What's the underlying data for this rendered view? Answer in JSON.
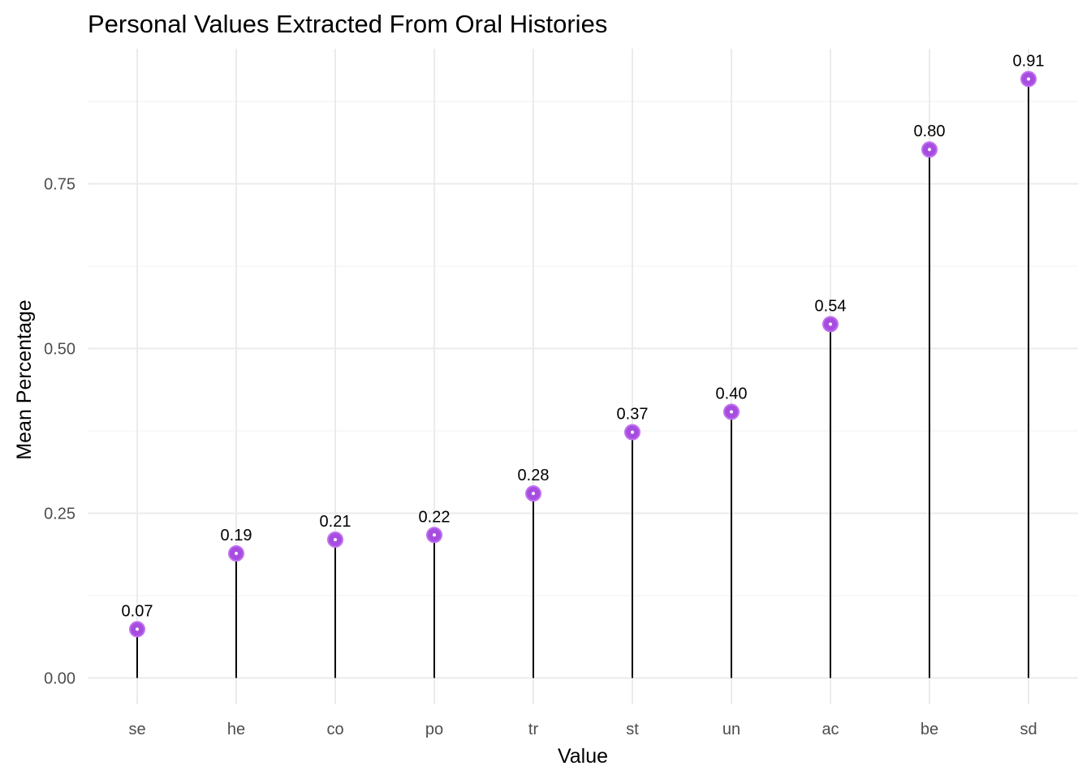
{
  "chart_data": {
    "type": "lollipop",
    "title": "Personal Values Extracted From Oral Histories",
    "xlabel": "Value",
    "ylabel": "Mean Percentage",
    "categories": [
      "se",
      "he",
      "co",
      "po",
      "tr",
      "st",
      "un",
      "ac",
      "be",
      "sd"
    ],
    "values": [
      0.074,
      0.189,
      0.21,
      0.217,
      0.28,
      0.373,
      0.404,
      0.537,
      0.802,
      0.909
    ],
    "value_labels": [
      "0.07",
      "0.19",
      "0.21",
      "0.22",
      "0.28",
      "0.37",
      "0.40",
      "0.54",
      "0.80",
      "0.91"
    ],
    "ylim": [
      -0.04,
      0.955
    ],
    "y_ticks": [
      0,
      0.25,
      0.5,
      0.75
    ],
    "y_tick_labels": [
      "0.00",
      "0.25",
      "0.50",
      "0.75"
    ],
    "y_minor_ticks": [
      0.125,
      0.375,
      0.625,
      0.875
    ],
    "grid": true,
    "legend": "none",
    "colors": {
      "point_fill": "#a64de0",
      "point_edge": "#c070f0",
      "stem": "#000000",
      "grid_major": "#ebebeb",
      "grid_minor": "#f2f2f2"
    }
  }
}
